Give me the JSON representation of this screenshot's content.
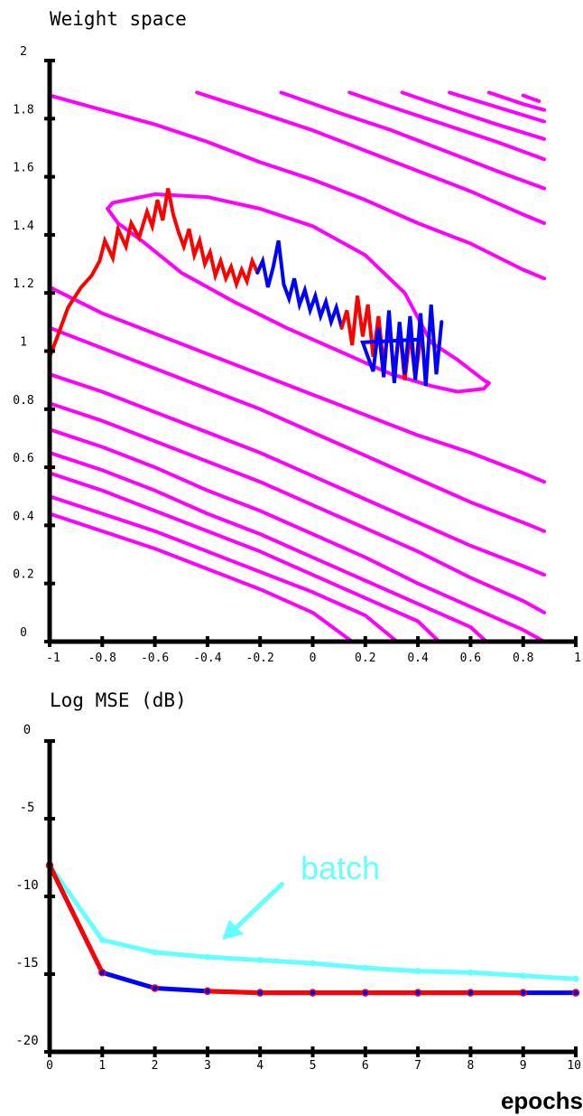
{
  "chart_data": [
    {
      "type": "line",
      "title": "Weight space",
      "xlim": [
        -1,
        1
      ],
      "ylim": [
        0,
        2
      ],
      "x_ticks": [
        "-1",
        "-0.8",
        "-0.6",
        "-0.4",
        "-0.2",
        "0",
        "0.2",
        "0.4",
        "0.6",
        "0.8",
        "1"
      ],
      "y_ticks": [
        "0",
        "0.2",
        "0.4",
        "0.6",
        "0.8",
        "1",
        "1.2",
        "1.4",
        "1.6",
        "1.8",
        "2"
      ],
      "colors": {
        "contour": "#ff00ff",
        "path_red": "#ff0000",
        "path_blue": "#0000ff"
      },
      "contours": [
        [
          [
            -1.0,
            1.88
          ],
          [
            -0.8,
            1.83
          ],
          [
            -0.6,
            1.78
          ],
          [
            -0.4,
            1.72
          ],
          [
            -0.2,
            1.65
          ],
          [
            0.0,
            1.59
          ],
          [
            0.2,
            1.52
          ],
          [
            0.4,
            1.44
          ],
          [
            0.6,
            1.37
          ],
          [
            0.8,
            1.28
          ],
          [
            0.88,
            1.25
          ]
        ],
        [
          [
            -0.44,
            1.89
          ],
          [
            -0.2,
            1.82
          ],
          [
            0.0,
            1.76
          ],
          [
            0.2,
            1.69
          ],
          [
            0.4,
            1.62
          ],
          [
            0.6,
            1.55
          ],
          [
            0.8,
            1.47
          ],
          [
            0.88,
            1.44
          ]
        ],
        [
          [
            -0.12,
            1.89
          ],
          [
            0.1,
            1.82
          ],
          [
            0.3,
            1.76
          ],
          [
            0.5,
            1.69
          ],
          [
            0.7,
            1.62
          ],
          [
            0.88,
            1.56
          ]
        ],
        [
          [
            0.14,
            1.89
          ],
          [
            0.3,
            1.84
          ],
          [
            0.5,
            1.78
          ],
          [
            0.7,
            1.72
          ],
          [
            0.88,
            1.66
          ]
        ],
        [
          [
            0.34,
            1.89
          ],
          [
            0.5,
            1.84
          ],
          [
            0.7,
            1.78
          ],
          [
            0.88,
            1.73
          ]
        ],
        [
          [
            0.52,
            1.89
          ],
          [
            0.7,
            1.84
          ],
          [
            0.88,
            1.79
          ]
        ],
        [
          [
            0.67,
            1.89
          ],
          [
            0.8,
            1.85
          ],
          [
            0.88,
            1.83
          ]
        ],
        [
          [
            0.8,
            1.88
          ],
          [
            0.86,
            1.86
          ]
        ],
        [
          [
            -0.76,
            1.51
          ],
          [
            -0.6,
            1.54
          ],
          [
            -0.4,
            1.53
          ],
          [
            -0.2,
            1.49
          ],
          [
            0.0,
            1.43
          ],
          [
            0.2,
            1.33
          ],
          [
            0.35,
            1.2
          ],
          [
            0.45,
            1.03
          ],
          [
            0.55,
            0.97
          ],
          [
            0.65,
            0.9
          ],
          [
            0.67,
            0.89
          ],
          [
            0.65,
            0.87
          ],
          [
            0.55,
            0.86
          ],
          [
            0.45,
            0.88
          ],
          [
            0.3,
            0.92
          ],
          [
            0.2,
            0.96
          ],
          [
            0.1,
            1.0
          ],
          [
            -0.1,
            1.08
          ],
          [
            -0.3,
            1.17
          ],
          [
            -0.5,
            1.27
          ],
          [
            -0.65,
            1.38
          ],
          [
            -0.74,
            1.44
          ],
          [
            -0.78,
            1.49
          ],
          [
            -0.76,
            1.51
          ]
        ],
        [
          [
            -1.0,
            1.22
          ],
          [
            -0.8,
            1.13
          ],
          [
            -0.6,
            1.06
          ],
          [
            -0.4,
            0.99
          ],
          [
            -0.2,
            0.92
          ],
          [
            0.0,
            0.85
          ],
          [
            0.2,
            0.78
          ],
          [
            0.4,
            0.71
          ],
          [
            0.6,
            0.65
          ],
          [
            0.8,
            0.58
          ],
          [
            0.88,
            0.55
          ]
        ],
        [
          [
            -1.0,
            1.08
          ],
          [
            -0.8,
            1.01
          ],
          [
            -0.6,
            0.94
          ],
          [
            -0.4,
            0.87
          ],
          [
            -0.2,
            0.8
          ],
          [
            0.0,
            0.72
          ],
          [
            0.2,
            0.64
          ],
          [
            0.4,
            0.56
          ],
          [
            0.6,
            0.48
          ],
          [
            0.8,
            0.41
          ],
          [
            0.88,
            0.38
          ]
        ],
        [
          [
            -1.0,
            0.92
          ],
          [
            -0.8,
            0.86
          ],
          [
            -0.6,
            0.79
          ],
          [
            -0.4,
            0.72
          ],
          [
            -0.2,
            0.65
          ],
          [
            0.0,
            0.57
          ],
          [
            0.2,
            0.49
          ],
          [
            0.4,
            0.41
          ],
          [
            0.6,
            0.33
          ],
          [
            0.8,
            0.26
          ],
          [
            0.88,
            0.23
          ]
        ],
        [
          [
            -1.0,
            0.82
          ],
          [
            -0.8,
            0.76
          ],
          [
            -0.6,
            0.69
          ],
          [
            -0.4,
            0.62
          ],
          [
            -0.2,
            0.55
          ],
          [
            0.0,
            0.47
          ],
          [
            0.2,
            0.39
          ],
          [
            0.4,
            0.31
          ],
          [
            0.6,
            0.22
          ],
          [
            0.8,
            0.14
          ],
          [
            0.88,
            0.1
          ]
        ],
        [
          [
            -1.0,
            0.73
          ],
          [
            -0.8,
            0.67
          ],
          [
            -0.6,
            0.6
          ],
          [
            -0.4,
            0.52
          ],
          [
            -0.2,
            0.45
          ],
          [
            0.0,
            0.37
          ],
          [
            0.2,
            0.29
          ],
          [
            0.4,
            0.2
          ],
          [
            0.6,
            0.12
          ],
          [
            0.8,
            0.04
          ],
          [
            0.88,
            0.0
          ]
        ],
        [
          [
            -1.0,
            0.65
          ],
          [
            -0.8,
            0.59
          ],
          [
            -0.6,
            0.52
          ],
          [
            -0.4,
            0.44
          ],
          [
            -0.2,
            0.37
          ],
          [
            0.0,
            0.29
          ],
          [
            0.2,
            0.21
          ],
          [
            0.4,
            0.13
          ],
          [
            0.6,
            0.05
          ],
          [
            0.66,
            0.0
          ]
        ],
        [
          [
            -1.0,
            0.58
          ],
          [
            -0.8,
            0.52
          ],
          [
            -0.6,
            0.45
          ],
          [
            -0.4,
            0.38
          ],
          [
            -0.2,
            0.31
          ],
          [
            0.0,
            0.23
          ],
          [
            0.2,
            0.15
          ],
          [
            0.4,
            0.07
          ],
          [
            0.48,
            0.0
          ]
        ],
        [
          [
            -1.0,
            0.5
          ],
          [
            -0.8,
            0.44
          ],
          [
            -0.6,
            0.38
          ],
          [
            -0.4,
            0.31
          ],
          [
            -0.2,
            0.24
          ],
          [
            0.0,
            0.17
          ],
          [
            0.2,
            0.09
          ],
          [
            0.32,
            0.0
          ]
        ],
        [
          [
            -1.0,
            0.44
          ],
          [
            -0.8,
            0.38
          ],
          [
            -0.6,
            0.32
          ],
          [
            -0.4,
            0.25
          ],
          [
            -0.2,
            0.18
          ],
          [
            0.0,
            0.1
          ],
          [
            0.15,
            0.0
          ]
        ]
      ],
      "series": [
        {
          "color": "#ff0000",
          "points": [
            [
              -1.0,
              0.98
            ],
            [
              -0.97,
              1.05
            ],
            [
              -0.93,
              1.15
            ],
            [
              -0.88,
              1.22
            ],
            [
              -0.84,
              1.26
            ],
            [
              -0.81,
              1.31
            ],
            [
              -0.79,
              1.38
            ],
            [
              -0.76,
              1.32
            ],
            [
              -0.74,
              1.42
            ],
            [
              -0.71,
              1.36
            ],
            [
              -0.69,
              1.44
            ],
            [
              -0.66,
              1.39
            ],
            [
              -0.63,
              1.48
            ],
            [
              -0.61,
              1.43
            ],
            [
              -0.59,
              1.52
            ],
            [
              -0.57,
              1.45
            ],
            [
              -0.55,
              1.56
            ],
            [
              -0.53,
              1.47
            ],
            [
              -0.51,
              1.41
            ],
            [
              -0.49,
              1.36
            ],
            [
              -0.47,
              1.42
            ],
            [
              -0.45,
              1.33
            ],
            [
              -0.43,
              1.38
            ],
            [
              -0.41,
              1.3
            ],
            [
              -0.39,
              1.34
            ],
            [
              -0.37,
              1.26
            ],
            [
              -0.35,
              1.31
            ],
            [
              -0.33,
              1.25
            ],
            [
              -0.31,
              1.29
            ],
            [
              -0.29,
              1.23
            ],
            [
              -0.27,
              1.28
            ],
            [
              -0.25,
              1.24
            ],
            [
              -0.23,
              1.31
            ],
            [
              -0.21,
              1.27
            ]
          ]
        },
        {
          "color": "#0000ff",
          "points": [
            [
              -0.21,
              1.27
            ],
            [
              -0.19,
              1.31
            ],
            [
              -0.17,
              1.22
            ],
            [
              -0.15,
              1.29
            ],
            [
              -0.13,
              1.38
            ],
            [
              -0.11,
              1.23
            ],
            [
              -0.09,
              1.18
            ],
            [
              -0.07,
              1.25
            ],
            [
              -0.05,
              1.16
            ],
            [
              -0.03,
              1.21
            ],
            [
              -0.01,
              1.14
            ],
            [
              0.01,
              1.19
            ],
            [
              0.03,
              1.12
            ],
            [
              0.05,
              1.17
            ],
            [
              0.07,
              1.1
            ],
            [
              0.09,
              1.15
            ],
            [
              0.11,
              1.08
            ]
          ]
        },
        {
          "color": "#ff0000",
          "points": [
            [
              0.11,
              1.08
            ],
            [
              0.13,
              1.14
            ],
            [
              0.15,
              1.02
            ],
            [
              0.17,
              1.19
            ],
            [
              0.19,
              1.05
            ],
            [
              0.21,
              1.16
            ],
            [
              0.23,
              0.98
            ],
            [
              0.25,
              1.12
            ],
            [
              0.27,
              0.95
            ],
            [
              0.29,
              1.1
            ],
            [
              0.31,
              0.92
            ],
            [
              0.33,
              1.08
            ],
            [
              0.35,
              0.9
            ],
            [
              0.37,
              1.06
            ],
            [
              0.39,
              0.91
            ],
            [
              0.41,
              1.04
            ]
          ]
        },
        {
          "color": "#0000ff",
          "points": [
            [
              0.41,
              1.04
            ],
            [
              0.19,
              1.03
            ],
            [
              0.23,
              0.93
            ],
            [
              0.25,
              1.08
            ],
            [
              0.27,
              0.91
            ],
            [
              0.29,
              1.14
            ],
            [
              0.31,
              0.89
            ],
            [
              0.33,
              1.1
            ],
            [
              0.35,
              0.92
            ],
            [
              0.37,
              1.12
            ],
            [
              0.39,
              0.9
            ],
            [
              0.41,
              1.13
            ],
            [
              0.43,
              0.88
            ],
            [
              0.45,
              1.16
            ],
            [
              0.47,
              0.92
            ],
            [
              0.49,
              1.1
            ]
          ]
        }
      ]
    },
    {
      "type": "line",
      "title": "Log MSE (dB)",
      "xlabel": "epochs",
      "xlim": [
        0,
        10
      ],
      "ylim": [
        -20,
        0
      ],
      "x_ticks": [
        "0",
        "1",
        "2",
        "3",
        "4",
        "5",
        "6",
        "7",
        "8",
        "9",
        "10"
      ],
      "y_ticks": [
        "0",
        "-5",
        "-10",
        "-15",
        "-20"
      ],
      "annotation": "batch",
      "colors": {
        "batch": "#66ffff",
        "blue": "#0000ff",
        "red": "#ff0000"
      },
      "x": [
        0,
        1,
        2,
        3,
        4,
        5,
        6,
        7,
        8,
        9,
        10
      ],
      "series": [
        {
          "name": "batch",
          "color": "#66ffff",
          "values": [
            -8.0,
            -12.8,
            -13.6,
            -13.9,
            -14.1,
            -14.3,
            -14.6,
            -14.8,
            -14.9,
            -15.1,
            -15.3
          ]
        },
        {
          "color": "#0000ff",
          "values": [
            -8.0,
            -14.9,
            -15.9,
            -16.1,
            -16.2,
            -16.2,
            -16.2,
            -16.2,
            -16.2,
            -16.2,
            -16.2
          ]
        },
        {
          "color": "#ff0000",
          "values": [
            -8.0,
            -14.9,
            -15.9,
            -16.1,
            -16.2,
            -16.2,
            -16.2,
            -16.2,
            -16.2,
            -16.2,
            -16.2
          ]
        }
      ],
      "red_segments": [
        [
          0,
          1
        ],
        [
          3,
          9
        ]
      ]
    }
  ]
}
